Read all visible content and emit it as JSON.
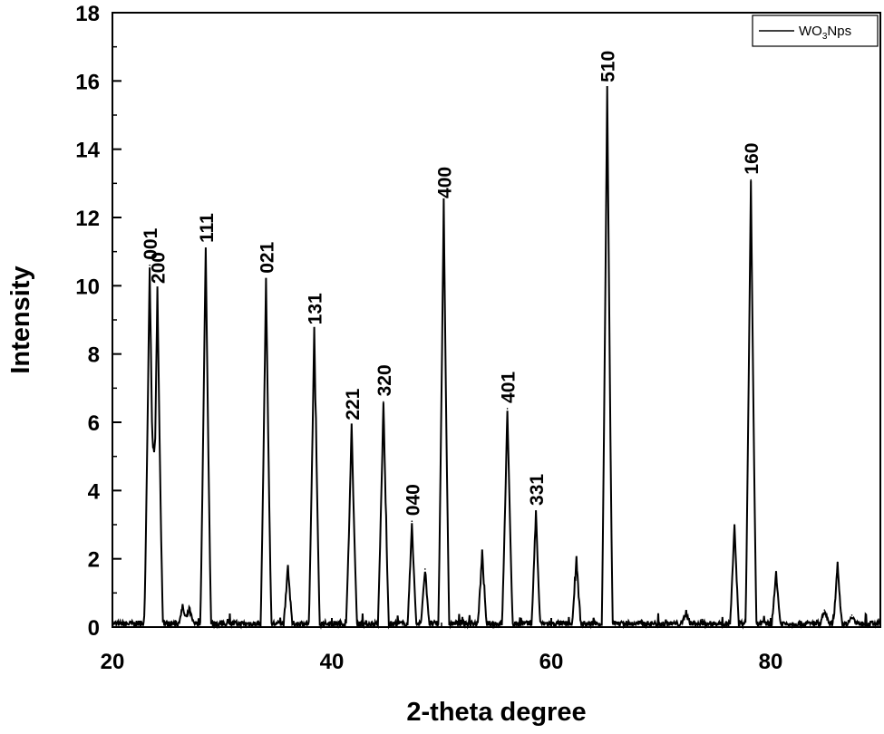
{
  "chart_data": {
    "type": "line",
    "title": "",
    "xlabel": "2-theta degree",
    "ylabel": "Intensity",
    "xlim": [
      20,
      90
    ],
    "ylim": [
      0,
      18
    ],
    "x_ticks": [
      20,
      40,
      60,
      80
    ],
    "y_ticks": [
      0,
      2,
      4,
      6,
      8,
      10,
      12,
      14,
      16,
      18
    ],
    "grid": false,
    "legend_position": "top-right",
    "legend": {
      "base": "WO",
      "sub": "3",
      "rest": "Nps"
    },
    "line_color": "#000000",
    "baseline": 0.1,
    "peaks": [
      {
        "x": 23.4,
        "y": 10.6,
        "label": "001"
      },
      {
        "x": 24.1,
        "y": 9.9,
        "label": "200"
      },
      {
        "x": 28.5,
        "y": 11.1,
        "label": "111"
      },
      {
        "x": 34.0,
        "y": 10.2,
        "label": "021"
      },
      {
        "x": 38.4,
        "y": 8.7,
        "label": "131"
      },
      {
        "x": 41.8,
        "y": 5.9,
        "label": "221"
      },
      {
        "x": 44.7,
        "y": 6.6,
        "label": "320"
      },
      {
        "x": 47.3,
        "y": 3.1,
        "label": "040"
      },
      {
        "x": 50.2,
        "y": 12.4,
        "label": "400"
      },
      {
        "x": 56.0,
        "y": 6.4,
        "label": "401"
      },
      {
        "x": 58.6,
        "y": 3.4,
        "label": "331"
      },
      {
        "x": 65.1,
        "y": 15.8,
        "label": "510"
      },
      {
        "x": 78.2,
        "y": 13.1,
        "label": "160"
      },
      {
        "x": 36.0,
        "y": 1.8,
        "label": ""
      },
      {
        "x": 48.5,
        "y": 1.7,
        "label": ""
      },
      {
        "x": 53.7,
        "y": 2.2,
        "label": ""
      },
      {
        "x": 62.3,
        "y": 2.0,
        "label": ""
      },
      {
        "x": 76.7,
        "y": 3.0,
        "label": ""
      },
      {
        "x": 80.5,
        "y": 1.6,
        "label": ""
      },
      {
        "x": 86.1,
        "y": 1.9,
        "label": ""
      },
      {
        "x": 26.4,
        "y": 0.6,
        "label": ""
      },
      {
        "x": 27.0,
        "y": 0.55,
        "label": ""
      },
      {
        "x": 72.3,
        "y": 0.45,
        "label": ""
      },
      {
        "x": 84.9,
        "y": 0.5,
        "label": ""
      },
      {
        "x": 87.4,
        "y": 0.35,
        "label": ""
      }
    ]
  }
}
